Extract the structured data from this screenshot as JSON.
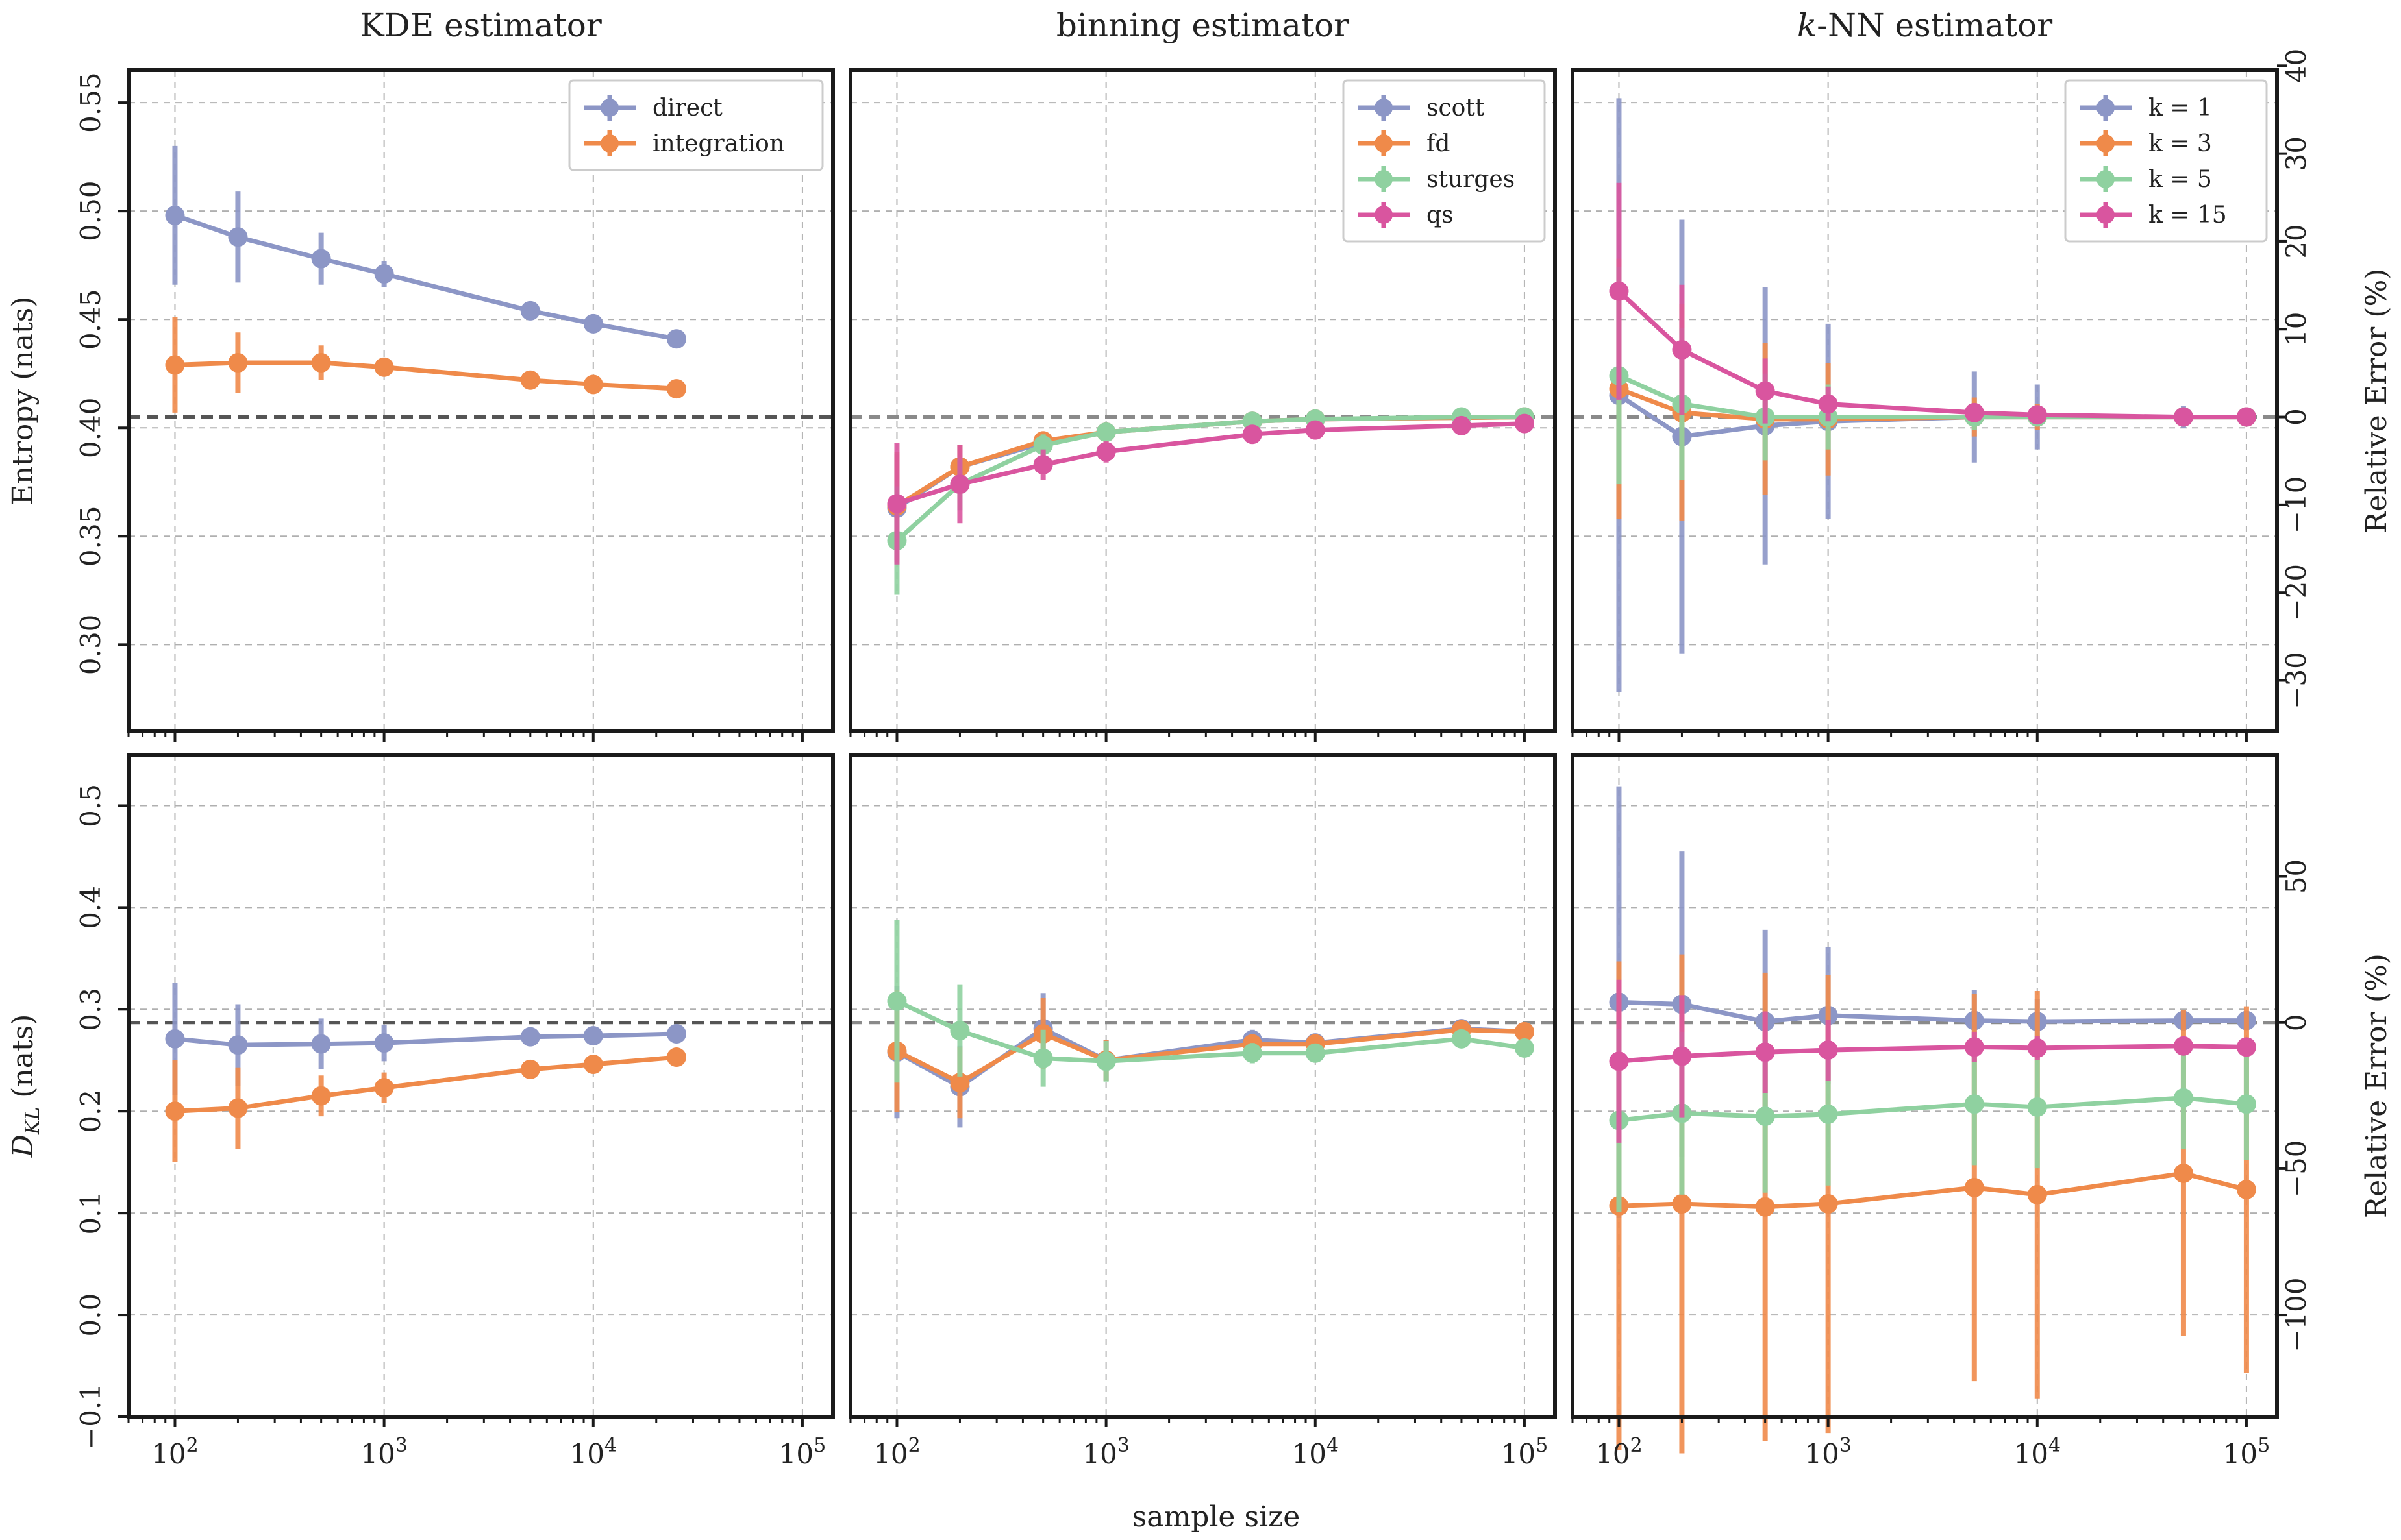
{
  "figure": {
    "xlabel": "sample size",
    "colors": {
      "blue": "#8c96c6",
      "orange": "#ef8a4a",
      "green": "#8fd1a0",
      "magenta": "#d9559f",
      "ref": "#555555"
    }
  },
  "chart_data": [
    {
      "id": "kde-entropy",
      "type": "line",
      "title": "KDE estimator",
      "ylabel": "Entropy (nats)",
      "ylim": [
        0.26,
        0.565
      ],
      "yticks": [
        0.3,
        0.35,
        0.4,
        0.45,
        0.5,
        0.55
      ],
      "ytick_labels": [
        "0.30",
        "0.35",
        "0.40",
        "0.45",
        "0.50",
        "0.55"
      ],
      "xscale": "log",
      "xlim": [
        60,
        140000
      ],
      "reference": 0.405,
      "legend": "top-right",
      "series": [
        {
          "name": "direct",
          "color": "#8c96c6",
          "x": [
            100,
            200,
            500,
            1000,
            5000,
            10000,
            25000
          ],
          "y": [
            0.498,
            0.488,
            0.478,
            0.471,
            0.454,
            0.448,
            0.441
          ],
          "err": [
            0.032,
            0.021,
            0.012,
            0.006,
            0.003,
            0.002,
            0.001
          ]
        },
        {
          "name": "integration",
          "color": "#ef8a4a",
          "x": [
            100,
            200,
            500,
            1000,
            5000,
            10000,
            25000
          ],
          "y": [
            0.429,
            0.43,
            0.43,
            0.428,
            0.422,
            0.42,
            0.418
          ],
          "err": [
            0.022,
            0.014,
            0.008,
            0.004,
            0.002,
            0.001,
            0.001
          ]
        }
      ]
    },
    {
      "id": "binning-entropy",
      "type": "line",
      "title": "binning estimator",
      "ylim": [
        0.26,
        0.565
      ],
      "xscale": "log",
      "xlim": [
        60,
        140000
      ],
      "reference": 0.405,
      "legend": "top-right",
      "series": [
        {
          "name": "scott",
          "color": "#8c96c6",
          "x": [
            100,
            200,
            500,
            1000,
            5000,
            10000,
            100000
          ],
          "y": [
            0.363,
            0.382,
            0.393,
            0.398,
            0.403,
            0.404,
            0.405
          ],
          "err": [
            0.025,
            0.01,
            0.004,
            0.002,
            0.001,
            0.001,
            0.001
          ]
        },
        {
          "name": "fd",
          "color": "#ef8a4a",
          "x": [
            100,
            200,
            500,
            1000,
            5000,
            10000,
            100000
          ],
          "y": [
            0.364,
            0.382,
            0.394,
            0.398,
            0.403,
            0.404,
            0.405
          ],
          "err": [
            0.025,
            0.01,
            0.004,
            0.002,
            0.001,
            0.001,
            0.001
          ]
        },
        {
          "name": "sturges",
          "color": "#8fd1a0",
          "x": [
            100,
            200,
            500,
            1000,
            5000,
            10000,
            50000,
            100000
          ],
          "y": [
            0.348,
            0.374,
            0.392,
            0.398,
            0.403,
            0.404,
            0.405,
            0.405
          ],
          "err": [
            0.025,
            0.012,
            0.005,
            0.002,
            0.001,
            0.001,
            0.001,
            0.001
          ]
        },
        {
          "name": "qs",
          "color": "#d9559f",
          "x": [
            100,
            200,
            500,
            1000,
            5000,
            10000,
            50000,
            100000
          ],
          "y": [
            0.365,
            0.374,
            0.383,
            0.389,
            0.397,
            0.399,
            0.401,
            0.402
          ],
          "err": [
            0.028,
            0.018,
            0.007,
            0.005,
            0.002,
            0.001,
            0.001,
            0.001
          ]
        }
      ]
    },
    {
      "id": "knn-entropy",
      "type": "line",
      "title_prefix": "k",
      "title": "-NN estimator",
      "ylim": [
        0.26,
        0.565
      ],
      "xscale": "log",
      "xlim": [
        60,
        140000
      ],
      "reference": 0.405,
      "legend": "top-right",
      "y2label": "Relative Error (%)",
      "y2ticks": [
        -30,
        -20,
        -10,
        0,
        10,
        20,
        30,
        40
      ],
      "y2tick_labels": [
        "−30",
        "−20",
        "−10",
        "0",
        "10",
        "20",
        "30",
        "40"
      ],
      "series": [
        {
          "name": "k = 1",
          "color": "#8c96c6",
          "x": [
            100,
            200,
            500,
            1000,
            5000,
            10000,
            50000,
            100000
          ],
          "y": [
            0.415,
            0.396,
            0.401,
            0.403,
            0.405,
            0.405,
            0.405,
            0.405
          ],
          "err": [
            0.137,
            0.1,
            0.064,
            0.045,
            0.021,
            0.015,
            0.005,
            0.003
          ]
        },
        {
          "name": "k = 3",
          "color": "#ef8a4a",
          "x": [
            100,
            200,
            500,
            1000,
            5000,
            10000,
            50000,
            100000
          ],
          "y": [
            0.418,
            0.407,
            0.404,
            0.404,
            0.405,
            0.405,
            0.405,
            0.405
          ],
          "err": [
            0.06,
            0.05,
            0.035,
            0.026,
            0.009,
            0.006,
            0.003,
            0.002
          ]
        },
        {
          "name": "k = 5",
          "color": "#8fd1a0",
          "x": [
            100,
            200,
            500,
            1000,
            5000,
            10000,
            50000,
            100000
          ],
          "y": [
            0.424,
            0.411,
            0.405,
            0.405,
            0.405,
            0.405,
            0.405,
            0.405
          ],
          "err": [
            0.05,
            0.035,
            0.02,
            0.015,
            0.006,
            0.004,
            0.002,
            0.001
          ]
        },
        {
          "name": "k = 15",
          "color": "#d9559f",
          "x": [
            100,
            200,
            500,
            1000,
            5000,
            10000,
            50000,
            100000
          ],
          "y": [
            0.463,
            0.436,
            0.417,
            0.411,
            0.407,
            0.406,
            0.405,
            0.405
          ],
          "err": [
            0.05,
            0.03,
            0.015,
            0.008,
            0.003,
            0.002,
            0.001,
            0.001
          ]
        }
      ]
    },
    {
      "id": "kde-kl",
      "type": "line",
      "ylabel_main": "D",
      "ylabel_sub": "KL",
      "ylabel_unit": " (nats)",
      "ylim": [
        -0.1,
        0.55
      ],
      "yticks": [
        -0.1,
        0.0,
        0.1,
        0.2,
        0.3,
        0.4,
        0.5
      ],
      "ytick_labels": [
        "−0.1",
        "0.0",
        "0.1",
        "0.2",
        "0.3",
        "0.4",
        "0.5"
      ],
      "xscale": "log",
      "xlim": [
        60,
        140000
      ],
      "reference": 0.287,
      "xtick_labels": [
        {
          "b": "10",
          "e": "2"
        },
        {
          "b": "10",
          "e": "3"
        },
        {
          "b": "10",
          "e": "4"
        },
        {
          "b": "10",
          "e": "5"
        }
      ],
      "series": [
        {
          "name": "direct",
          "color": "#8c96c6",
          "x": [
            100,
            200,
            500,
            1000,
            5000,
            10000,
            25000
          ],
          "y": [
            0.271,
            0.265,
            0.266,
            0.267,
            0.273,
            0.274,
            0.276
          ],
          "err": [
            0.055,
            0.04,
            0.025,
            0.018,
            0.008,
            0.006,
            0.004
          ]
        },
        {
          "name": "integration",
          "color": "#ef8a4a",
          "x": [
            100,
            200,
            500,
            1000,
            5000,
            10000,
            25000
          ],
          "y": [
            0.2,
            0.203,
            0.215,
            0.223,
            0.241,
            0.246,
            0.253
          ],
          "err": [
            0.05,
            0.04,
            0.02,
            0.015,
            0.008,
            0.006,
            0.004
          ]
        }
      ]
    },
    {
      "id": "binning-kl",
      "type": "line",
      "ylim": [
        -0.1,
        0.55
      ],
      "xscale": "log",
      "xlim": [
        60,
        140000
      ],
      "reference": 0.287,
      "xtick_labels": [
        {
          "b": "10",
          "e": "2"
        },
        {
          "b": "10",
          "e": "3"
        },
        {
          "b": "10",
          "e": "4"
        },
        {
          "b": "10",
          "e": "5"
        }
      ],
      "series": [
        {
          "name": "scott",
          "color": "#8c96c6",
          "x": [
            100,
            200,
            500,
            1000,
            5000,
            10000,
            50000,
            100000
          ],
          "y": [
            0.258,
            0.224,
            0.281,
            0.25,
            0.27,
            0.267,
            0.281,
            0.278
          ],
          "err": [
            0.065,
            0.04,
            0.035,
            0.02,
            0.01,
            0.008,
            0.004,
            0.003
          ]
        },
        {
          "name": "fd",
          "color": "#ef8a4a",
          "x": [
            100,
            200,
            500,
            1000,
            5000,
            10000,
            50000,
            100000
          ],
          "y": [
            0.259,
            0.228,
            0.276,
            0.25,
            0.266,
            0.266,
            0.28,
            0.278
          ],
          "err": [
            0.06,
            0.035,
            0.035,
            0.02,
            0.01,
            0.008,
            0.004,
            0.003
          ]
        },
        {
          "name": "sturges",
          "color": "#8fd1a0",
          "x": [
            100,
            200,
            500,
            1000,
            5000,
            10000,
            50000,
            100000
          ],
          "y": [
            0.308,
            0.279,
            0.252,
            0.249,
            0.257,
            0.257,
            0.271,
            0.262
          ],
          "err": [
            0.08,
            0.045,
            0.028,
            0.02,
            0.01,
            0.008,
            0.004,
            0.003
          ]
        }
      ]
    },
    {
      "id": "knn-kl",
      "type": "line",
      "ylim": [
        -0.1,
        0.55
      ],
      "xscale": "log",
      "xlim": [
        60,
        140000
      ],
      "reference": 0.287,
      "y2label": "Relative Error (%)",
      "y2ticks": [
        -100,
        -50,
        0,
        50
      ],
      "y2tick_labels": [
        "−100",
        "−50",
        "0",
        "50"
      ],
      "xtick_labels": [
        {
          "b": "10",
          "e": "2"
        },
        {
          "b": "10",
          "e": "3"
        },
        {
          "b": "10",
          "e": "4"
        },
        {
          "b": "10",
          "e": "5"
        }
      ],
      "series": [
        {
          "name": "k = 1",
          "color": "#8c96c6",
          "x": [
            100,
            200,
            500,
            1000,
            5000,
            10000,
            50000,
            100000
          ],
          "y": [
            0.307,
            0.305,
            0.288,
            0.294,
            0.289,
            0.288,
            0.289,
            0.289
          ],
          "err": [
            0.212,
            0.15,
            0.09,
            0.067,
            0.03,
            0.022,
            0.01,
            0.007
          ]
        },
        {
          "name": "k = 3",
          "color": "#ef8a4a",
          "x": [
            100,
            200,
            500,
            1000,
            5000,
            10000,
            50000,
            100000
          ],
          "y": [
            0.107,
            0.109,
            0.106,
            0.109,
            0.125,
            0.118,
            0.139,
            0.123
          ],
          "err": [
            0.24,
            0.245,
            0.23,
            0.225,
            0.19,
            0.2,
            0.16,
            0.18
          ]
        },
        {
          "name": "k = 5",
          "color": "#8fd1a0",
          "x": [
            100,
            200,
            500,
            1000,
            5000,
            10000,
            50000,
            100000
          ],
          "y": [
            0.191,
            0.198,
            0.195,
            0.197,
            0.207,
            0.204,
            0.213,
            0.207
          ],
          "err": [
            0.09,
            0.08,
            0.075,
            0.07,
            0.06,
            0.06,
            0.05,
            0.055
          ]
        },
        {
          "name": "k = 15",
          "color": "#d9559f",
          "x": [
            100,
            200,
            500,
            1000,
            5000,
            10000,
            50000,
            100000
          ],
          "y": [
            0.249,
            0.254,
            0.258,
            0.26,
            0.263,
            0.262,
            0.264,
            0.263
          ],
          "err": [
            0.08,
            0.06,
            0.04,
            0.03,
            0.015,
            0.012,
            0.008,
            0.006
          ]
        }
      ]
    }
  ]
}
